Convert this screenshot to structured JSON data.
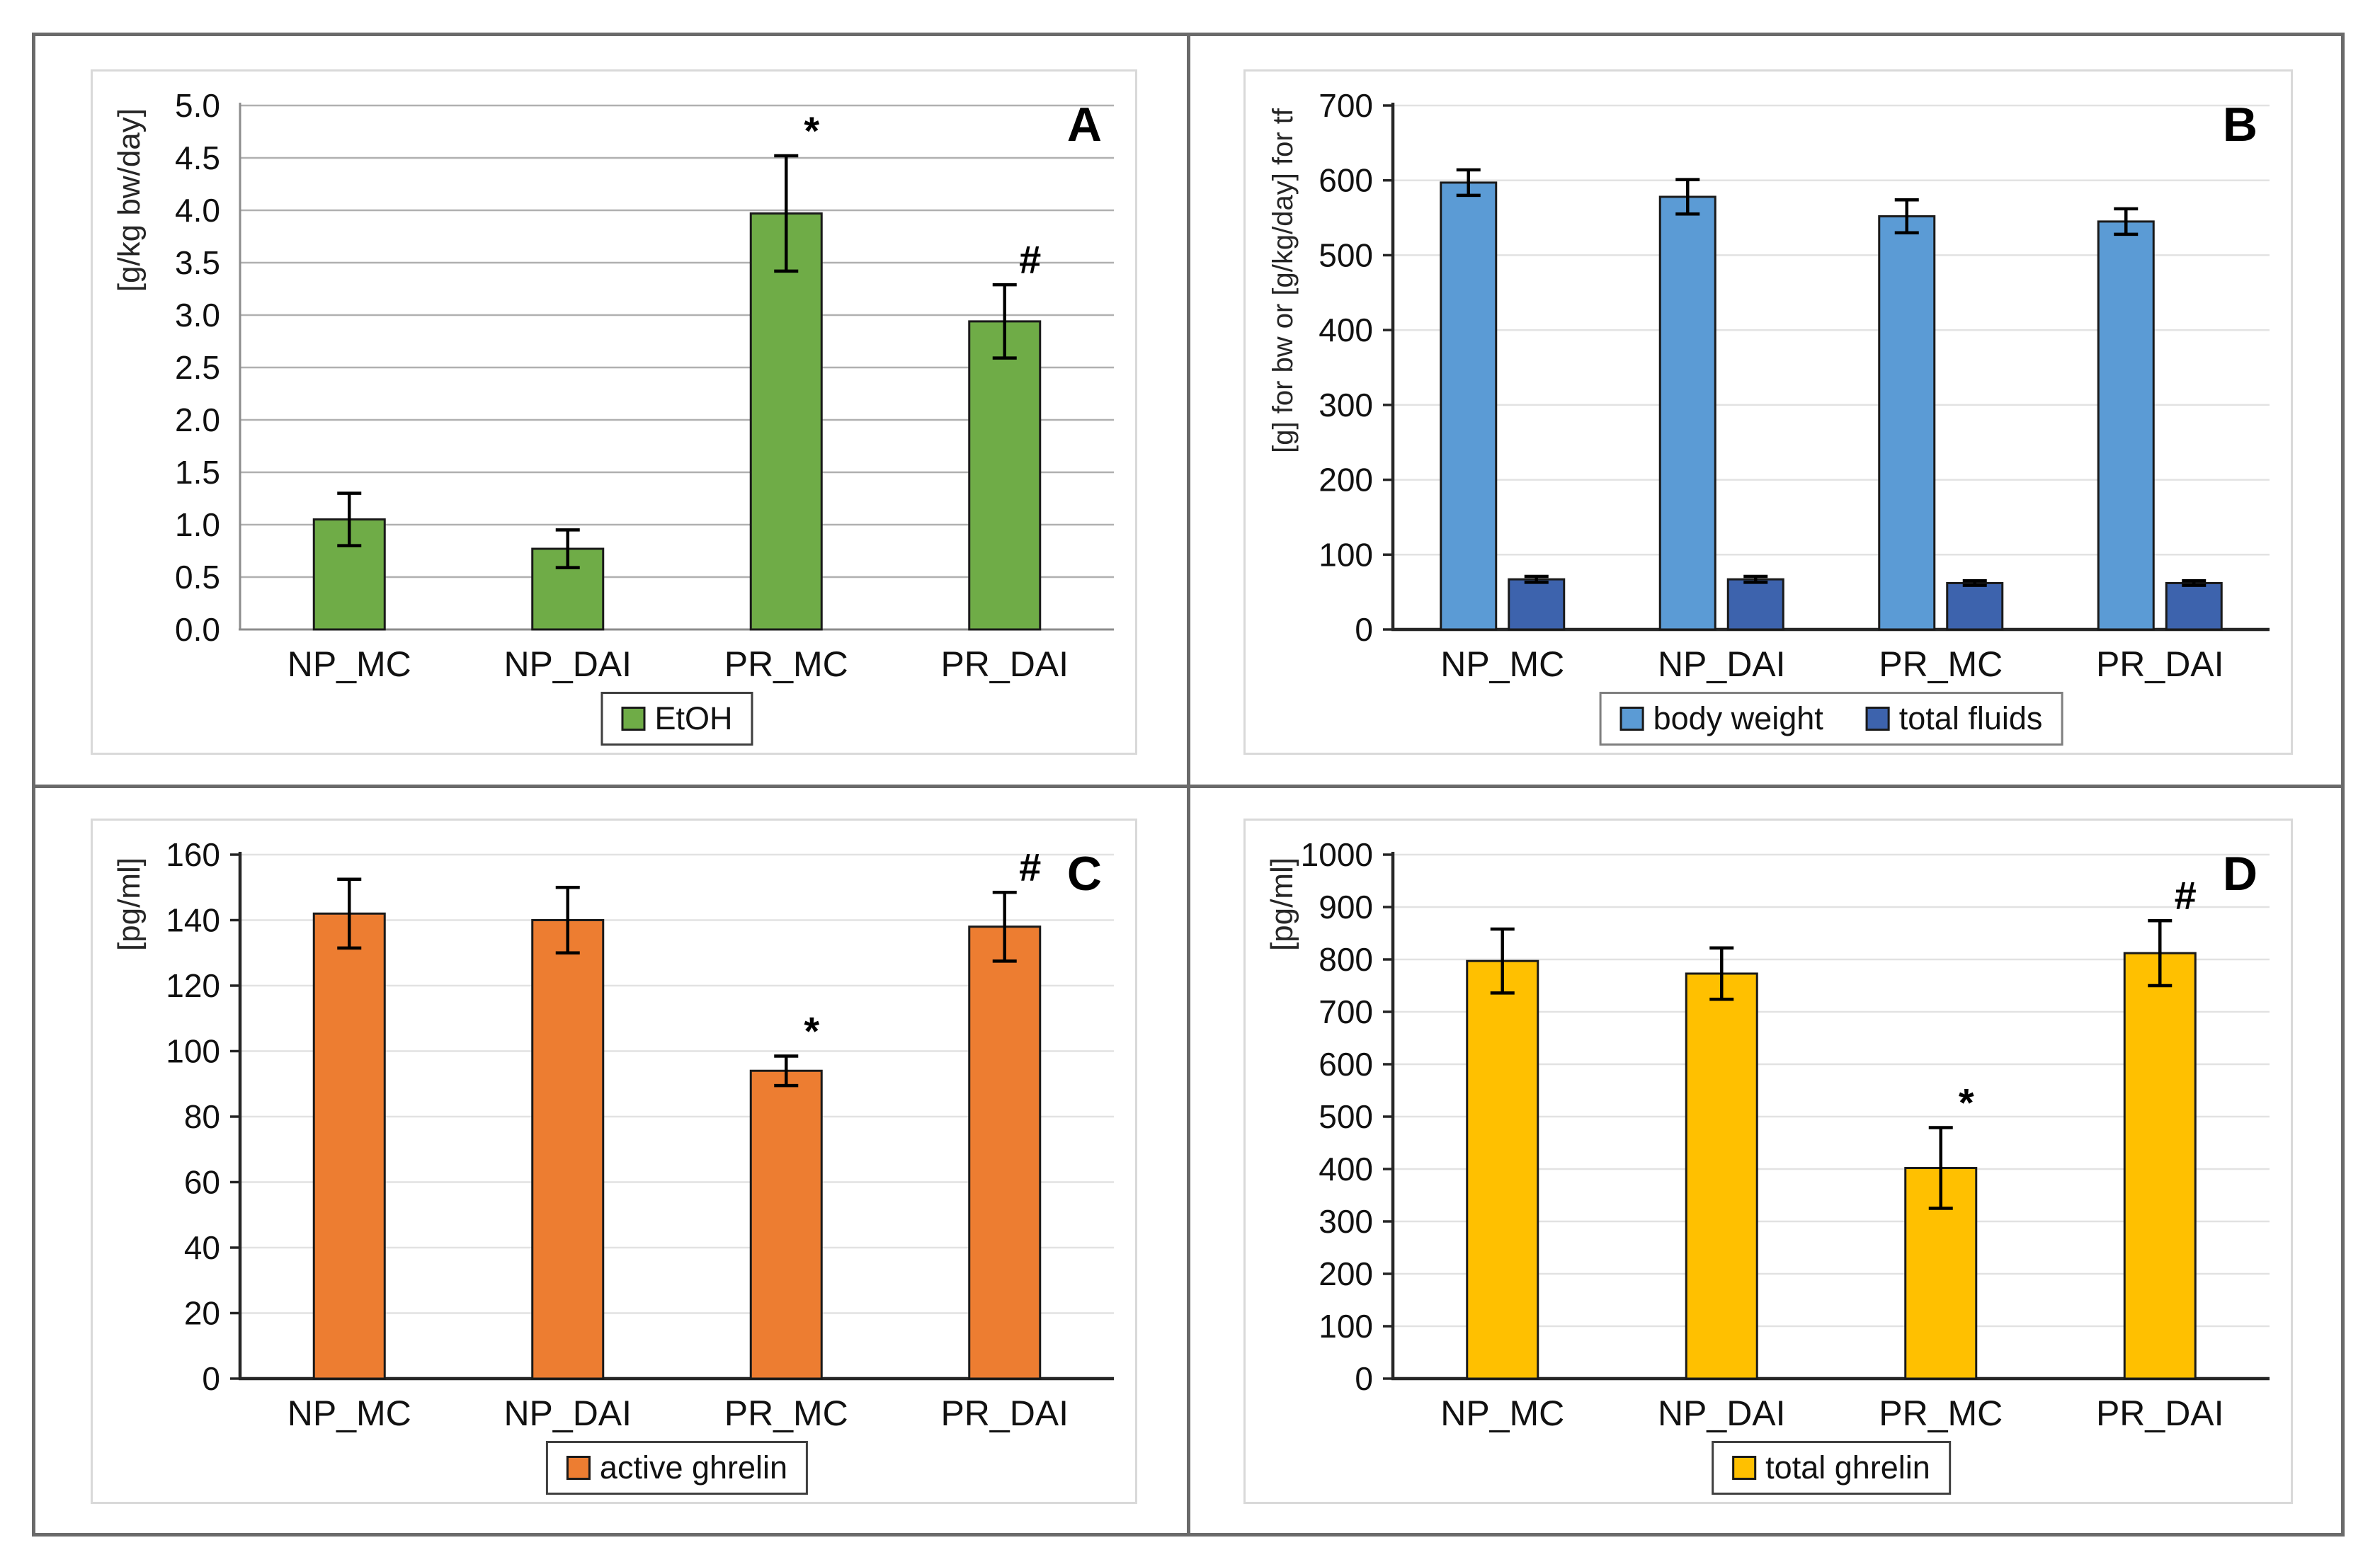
{
  "figure": {
    "description": "Four-panel bar chart figure",
    "categories_shared": [
      "NP_MC",
      "NP_DAI",
      "PR_MC",
      "PR_DAI"
    ],
    "significance_symbols": {
      "asterisk": "*",
      "hash": "#"
    }
  },
  "chart_data": [
    {
      "type": "bar",
      "panel_label": "A",
      "ylabel": "[g/kg bw/day]",
      "ylim": [
        0,
        5
      ],
      "ytick_step": 0.5,
      "y_decimals": 1,
      "grid_on": true,
      "categories": [
        "NP_MC",
        "NP_DAI",
        "PR_MC",
        "PR_DAI"
      ],
      "series": [
        {
          "name": "EtOH",
          "color": "#6FAC47",
          "values": [
            1.05,
            0.77,
            3.97,
            2.94
          ],
          "errors": [
            0.25,
            0.18,
            0.55,
            0.35
          ]
        }
      ],
      "annotations": [
        "",
        "",
        "*",
        "#"
      ],
      "legend_position": "bottom-center",
      "legend_border": "#3f3f3f",
      "grid_color": "#b0b0b0",
      "axis_color": "#8c8c8c",
      "tick_marks": false
    },
    {
      "type": "bar",
      "panel_label": "B",
      "ylabel": "[g] for bw or [g/kg/day] for tf",
      "ylim": [
        0,
        700
      ],
      "ytick_step": 100,
      "y_decimals": 0,
      "grid_on": true,
      "categories": [
        "NP_MC",
        "NP_DAI",
        "PR_MC",
        "PR_DAI"
      ],
      "series": [
        {
          "name": "body weight",
          "color": "#5B9BD5",
          "values": [
            597,
            578,
            552,
            545
          ],
          "errors": [
            17,
            23,
            22,
            17
          ]
        },
        {
          "name": "total fluids",
          "color": "#3D63AD",
          "values": [
            67,
            67,
            62,
            62
          ],
          "errors": [
            4,
            4,
            3,
            3
          ]
        }
      ],
      "annotations": [
        "",
        "",
        "",
        ""
      ],
      "legend_position": "bottom-center",
      "legend_border": "#7f7f7f",
      "grid_color": "#e2e2e2",
      "axis_color": "#262626",
      "tick_marks": true
    },
    {
      "type": "bar",
      "panel_label": "C",
      "ylabel": "[pg/ml]",
      "ylim": [
        0,
        160
      ],
      "ytick_step": 20,
      "y_decimals": 0,
      "grid_on": true,
      "categories": [
        "NP_MC",
        "NP_DAI",
        "PR_MC",
        "PR_DAI"
      ],
      "series": [
        {
          "name": "active ghrelin",
          "color": "#ED7D31",
          "values": [
            142,
            140,
            94,
            138
          ],
          "errors": [
            10.5,
            10,
            4.5,
            10.5
          ]
        }
      ],
      "annotations": [
        "",
        "",
        "*",
        "#"
      ],
      "legend_position": "bottom-center",
      "legend_border": "#3f3f3f",
      "grid_color": "#e2e2e2",
      "axis_color": "#262626",
      "tick_marks": true
    },
    {
      "type": "bar",
      "panel_label": "D",
      "ylabel": "[pg/ml]",
      "ylim": [
        0,
        1000
      ],
      "ytick_step": 100,
      "y_decimals": 0,
      "grid_on": true,
      "categories": [
        "NP_MC",
        "NP_DAI",
        "PR_MC",
        "PR_DAI"
      ],
      "series": [
        {
          "name": "total ghrelin",
          "color": "#FFC000",
          "values": [
            797,
            773,
            402,
            812
          ],
          "errors": [
            61,
            49,
            77,
            62
          ]
        }
      ],
      "annotations": [
        "",
        "",
        "*",
        "#"
      ],
      "legend_position": "bottom-center",
      "legend_border": "#3f3f3f",
      "grid_color": "#e2e2e2",
      "axis_color": "#262626",
      "tick_marks": true
    }
  ]
}
